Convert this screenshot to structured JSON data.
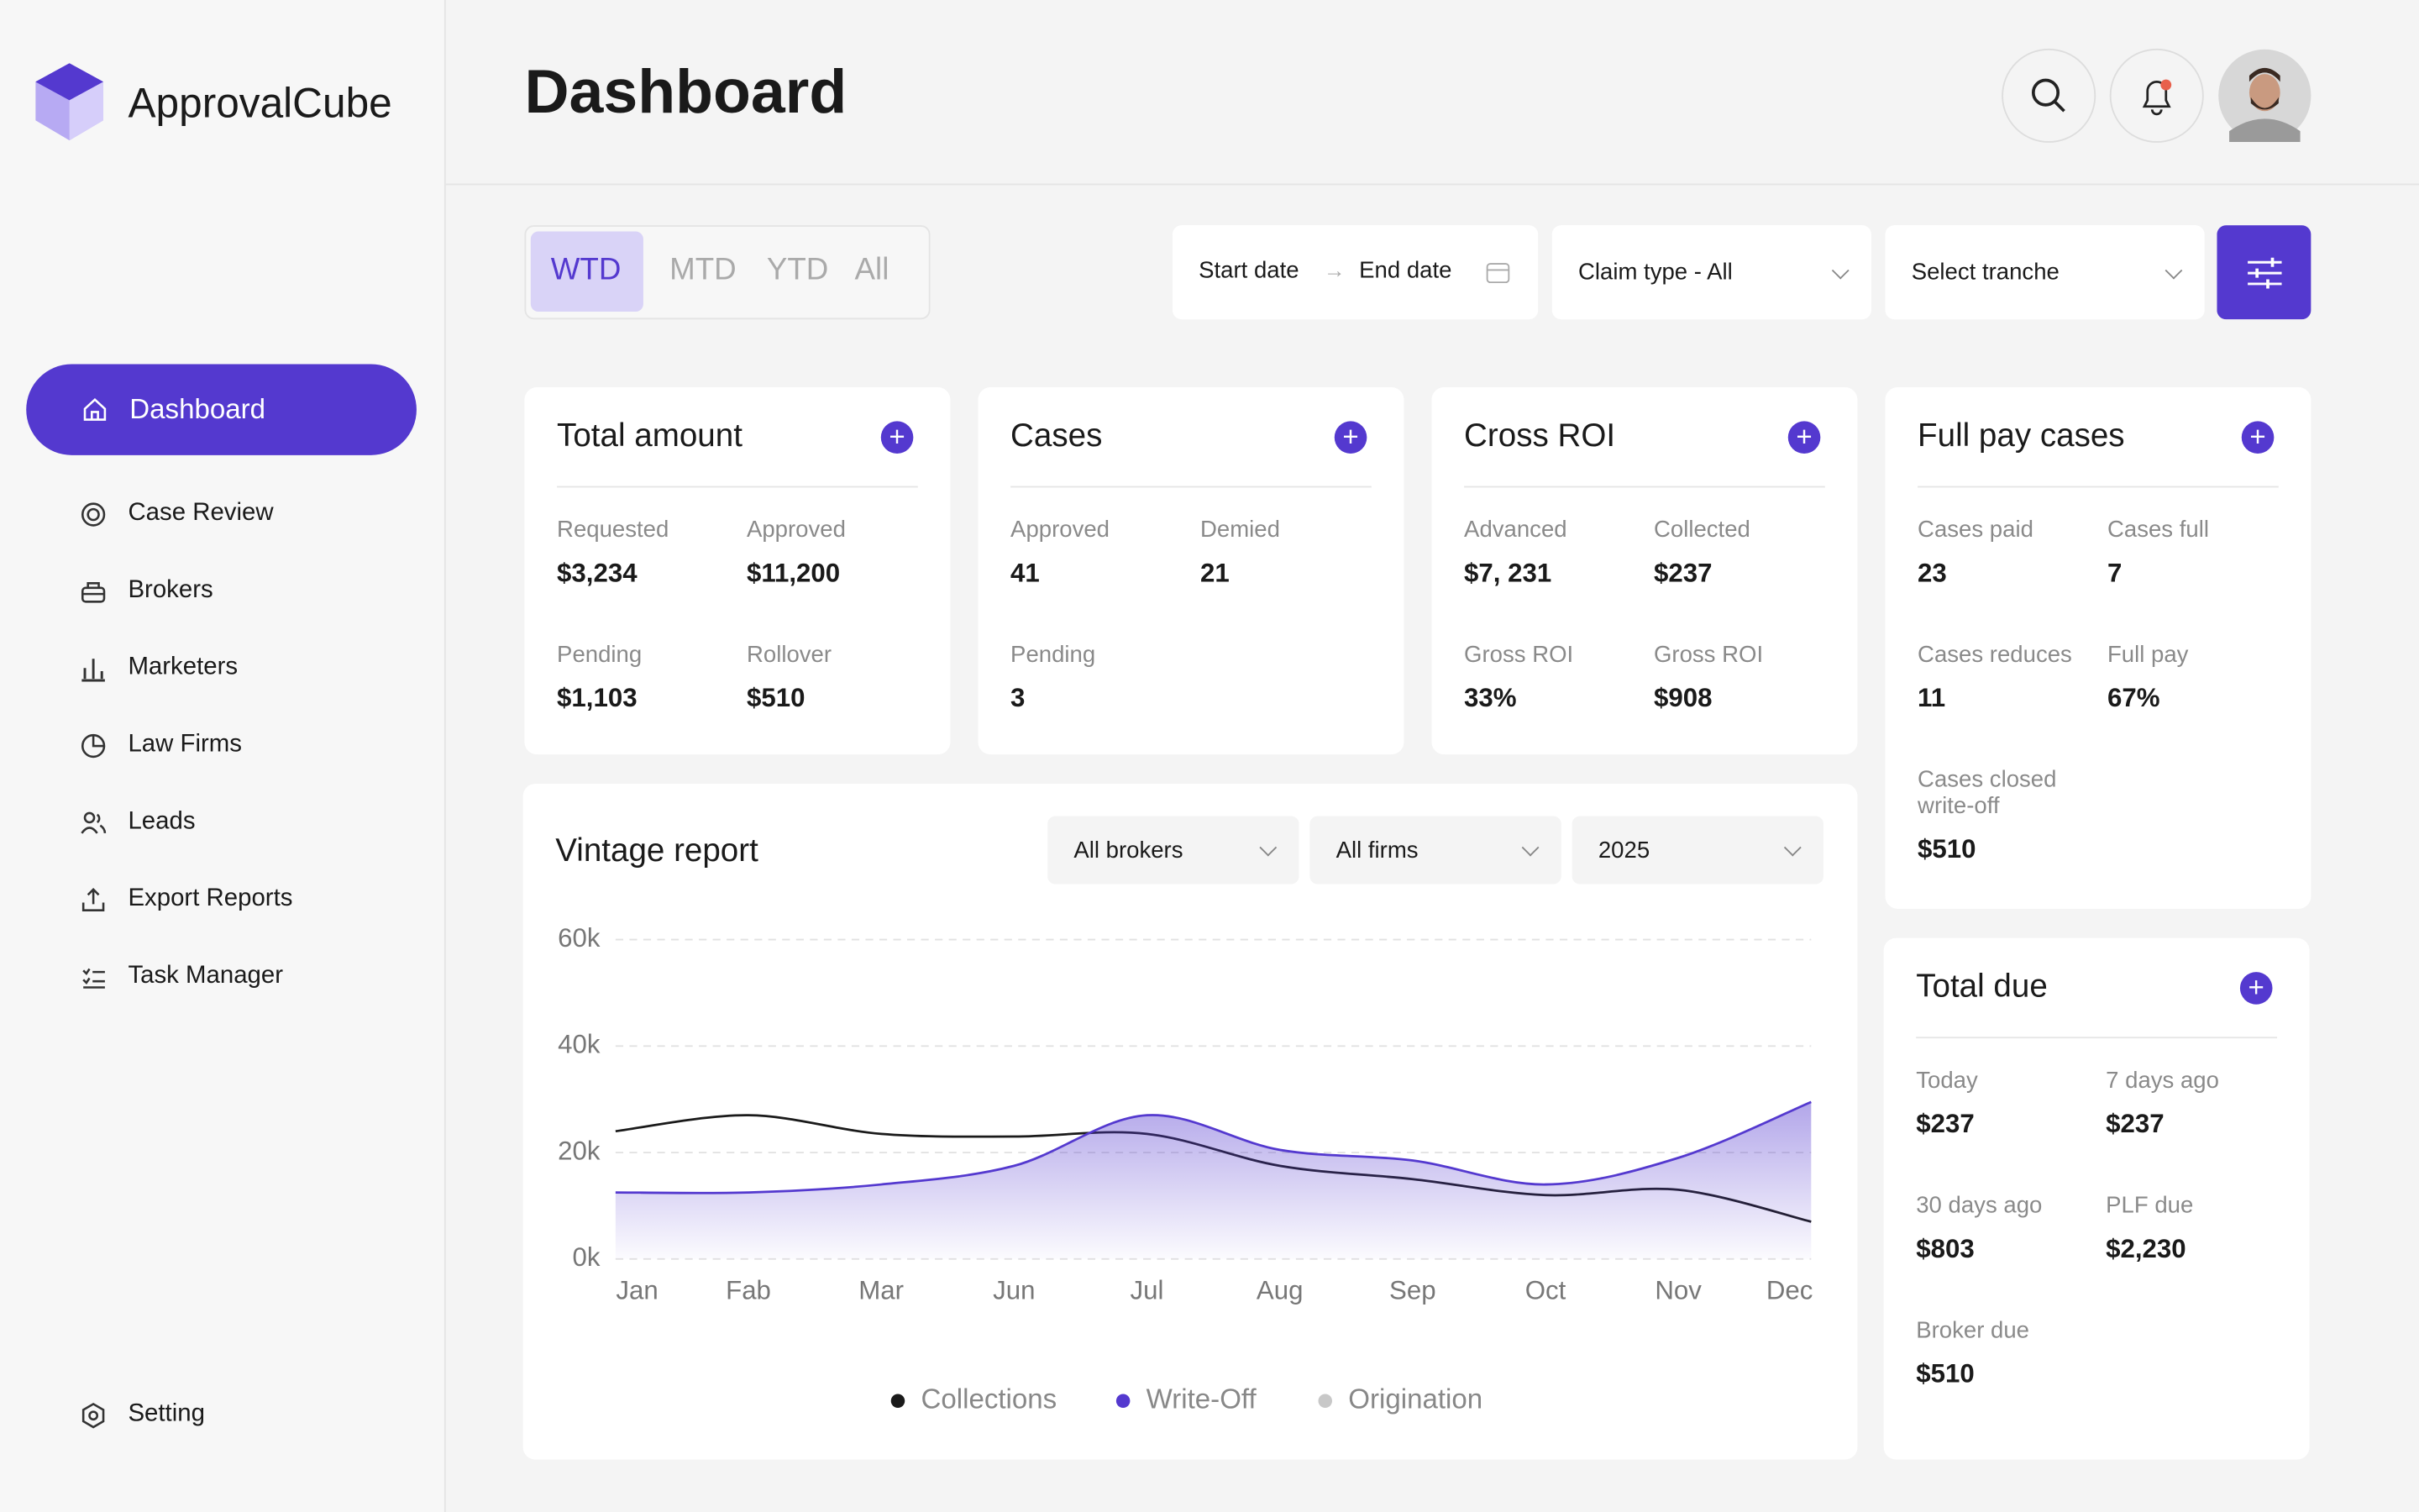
{
  "brand": "ApprovalCube",
  "nav": {
    "items": [
      "Dashboard",
      "Case Review",
      "Brokers",
      "Marketers",
      "Law Firms",
      "Leads",
      "Export Reports",
      "Task Manager"
    ],
    "setting": "Setting"
  },
  "header": {
    "title": "Dashboard"
  },
  "period_tabs": [
    "WTD",
    "MTD",
    "YTD",
    "All"
  ],
  "filters": {
    "start_date": "Start date",
    "end_date": "End date",
    "claim_type": "Claim type - All",
    "tranche": "Select tranche"
  },
  "cards": [
    {
      "title": "Total amount",
      "fields": [
        {
          "label": "Requested",
          "value": "$3,234"
        },
        {
          "label": "Approved",
          "value": "$11,200"
        },
        {
          "label": "Pending",
          "value": "$1,103"
        },
        {
          "label": "Rollover",
          "value": "$510"
        }
      ]
    },
    {
      "title": "Cases",
      "fields": [
        {
          "label": "Approved",
          "value": "41"
        },
        {
          "label": "Demied",
          "value": "21"
        },
        {
          "label": "Pending",
          "value": "3"
        }
      ]
    },
    {
      "title": "Cross ROI",
      "fields": [
        {
          "label": "Advanced",
          "value": "$7, 231"
        },
        {
          "label": "Collected",
          "value": "$237"
        },
        {
          "label": "Gross ROI",
          "value": "33%"
        },
        {
          "label": "Gross ROI",
          "value": "$908"
        }
      ]
    },
    {
      "title": "Full pay cases",
      "fields": [
        {
          "label": "Cases paid",
          "value": "23"
        },
        {
          "label": "Cases full",
          "value": "7"
        },
        {
          "label": "Cases reduces",
          "value": "11"
        },
        {
          "label": "Full pay",
          "value": "67%"
        },
        {
          "label": "Cases closed write-off",
          "value": "$510"
        }
      ]
    },
    {
      "title": "Total due",
      "fields": [
        {
          "label": "Today",
          "value": "$237"
        },
        {
          "label": "7 days ago",
          "value": "$237"
        },
        {
          "label": "30 days ago",
          "value": "$803"
        },
        {
          "label": "PLF due",
          "value": "$2,230"
        },
        {
          "label": "Broker due",
          "value": "$510"
        }
      ]
    }
  ],
  "vintage_filters": [
    "All brokers",
    "All firms",
    "2025"
  ],
  "chart_data": {
    "type": "line",
    "title": "Vintage report",
    "categories": [
      "Jan",
      "Fab",
      "Mar",
      "Jun",
      "Jul",
      "Aug",
      "Sep",
      "Oct",
      "Nov",
      "Dec"
    ],
    "series": [
      {
        "name": "Collections",
        "color": "#1a1a1a",
        "values": [
          24000,
          27000,
          23500,
          23000,
          23500,
          17500,
          15000,
          12000,
          13000,
          7000
        ]
      },
      {
        "name": "Write-Off",
        "color": "#5439cf",
        "values": [
          12500,
          12500,
          14000,
          17500,
          27000,
          20500,
          18500,
          14000,
          19000,
          29500
        ],
        "area": true
      },
      {
        "name": "Origination",
        "color": "#c8c8c8",
        "values": [
          null,
          null,
          null,
          null,
          null,
          null,
          null,
          null,
          null,
          null
        ]
      }
    ],
    "ylim": [
      0,
      60000
    ],
    "yticks": [
      {
        "value": 0,
        "label": "0k"
      },
      {
        "value": 20000,
        "label": "20k"
      },
      {
        "value": 40000,
        "label": "40k"
      },
      {
        "value": 60000,
        "label": "60k"
      }
    ],
    "grid": true
  }
}
